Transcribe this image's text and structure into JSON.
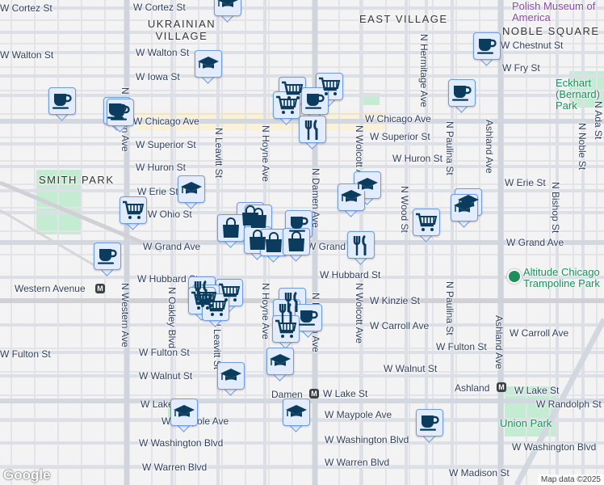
{
  "map": {
    "neighborhoods": [
      "UKRAINIAN VILLAGE",
      "EAST VILLAGE",
      "NOBLE SQUARE",
      "SMITH PARK"
    ],
    "pois": [
      "Polish Museum of America",
      "Altitude Chicago Trampoline Park",
      "Union Park",
      "Eckhart (Bernard) Park"
    ],
    "streets_horizontal": [
      "W Cortez St",
      "W Cortez St",
      "W Walton St",
      "W Walton St",
      "W Iowa St",
      "W Chestnut St",
      "W Fry St",
      "W Chicago Ave",
      "W Chicago Ave",
      "W Superior St",
      "W Superior St",
      "W Huron St",
      "W Huron St",
      "W Erie St",
      "W Erie St",
      "W Ohio St",
      "W Grand Ave",
      "W Grand Ave",
      "W Grand Ave",
      "W Hubbard St",
      "W Hubbard St",
      "W Kinzie St",
      "W Carroll Ave",
      "W Carroll Ave",
      "W Fulton St",
      "W Fulton St",
      "W Fulton St",
      "W Walnut St",
      "W Walnut St",
      "W Lake St",
      "W Lake St",
      "W Lake St",
      "W Maypole Ave",
      "W Maypole Ave",
      "W Washington Blvd",
      "W Washington Blvd",
      "W Washington Blvd",
      "W Warren Blvd",
      "W Warren Blvd",
      "W Randolph St",
      "W Madison St"
    ],
    "streets_vertical": [
      "N Western Ave",
      "N Western Ave",
      "N Oakley Blvd",
      "N Leavitt St",
      "N Hoyne Ave",
      "N Hoyne Ave",
      "N Damen Ave",
      "N Damen Ave",
      "N Wolcott Ave",
      "N Wolcott Ave",
      "N Wood St",
      "N Hermitage Ave",
      "N Paulina St",
      "N Paulina St",
      "Ashland Ave",
      "Ashland Ave",
      "N Bishop St",
      "N Noble St",
      "N Ada St",
      "N Leavitt St"
    ],
    "stations": [
      "Western Avenue",
      "Damen",
      "Ashland"
    ],
    "station_icon": "metro-icon",
    "attribution": "Map data ©2025",
    "logo": "Google"
  },
  "markers": [
    "school",
    "coffee",
    "school",
    "cart",
    "cart",
    "coffee",
    "cart",
    "coffee",
    "coffee",
    "coffee",
    "coffee",
    "restaurant",
    "school",
    "school",
    "school",
    "cart",
    "school",
    "school",
    "cart",
    "bag",
    "bag",
    "bag",
    "coffee",
    "bag",
    "bag",
    "bag",
    "restaurant",
    "coffee",
    "restaurant",
    "cart",
    "cart",
    "cart",
    "cart",
    "restaurant",
    "restaurant",
    "coffee",
    "cart",
    "school",
    "school",
    "school",
    "school",
    "coffee"
  ],
  "colors": {
    "marker_fill": "#e3ecfc",
    "marker_border": "#6f9be0",
    "icon": "#0b3c5d",
    "park": "#c3ecd2",
    "poi_green": "#1e8e5a",
    "commercial": "#fbf1d6"
  }
}
